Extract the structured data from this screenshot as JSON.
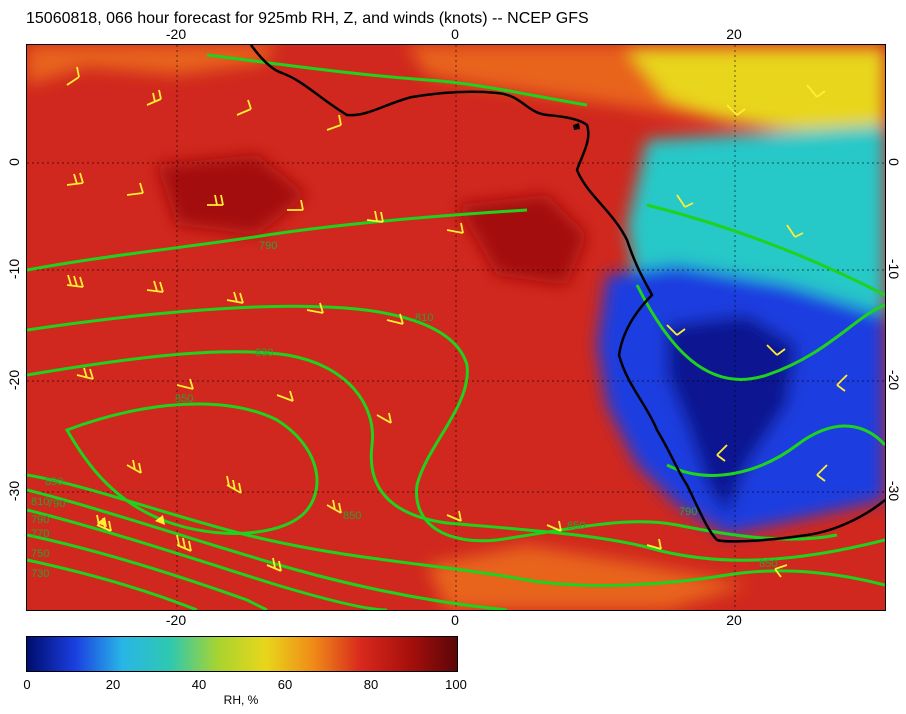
{
  "title": "15060818, 066 hour forecast for 925mb RH, Z, and winds (knots) -- NCEP GFS",
  "map": {
    "x_ticks": [
      "-20",
      "0",
      "20"
    ],
    "y_ticks": [
      "0",
      "-10",
      "-20",
      "-30"
    ],
    "contour_labels": [
      "790",
      "810",
      "830",
      "850",
      "850",
      "850",
      "790",
      "850",
      "850",
      "790",
      "810",
      "790",
      "770",
      "750",
      "730"
    ],
    "colors": {
      "red": "#d0281e",
      "darkred": "#a4100e",
      "orange": "#e8641a",
      "yellow": "#e8d61a",
      "cyan": "#28c8c8",
      "blue": "#1c3ce0",
      "navy": "#0a1490",
      "contour": "#1ed21e",
      "barb": "#ffee33",
      "coast": "#000000"
    }
  },
  "colorbar": {
    "ticks": [
      "0",
      "20",
      "40",
      "60",
      "80",
      "100"
    ],
    "label": "RH, %",
    "stops": [
      "#000d6e",
      "#1a3ee0",
      "#28b6e6",
      "#2ec8b0",
      "#a8d430",
      "#e8d61a",
      "#f08a18",
      "#d8281c",
      "#a8100c",
      "#5c0608"
    ]
  }
}
